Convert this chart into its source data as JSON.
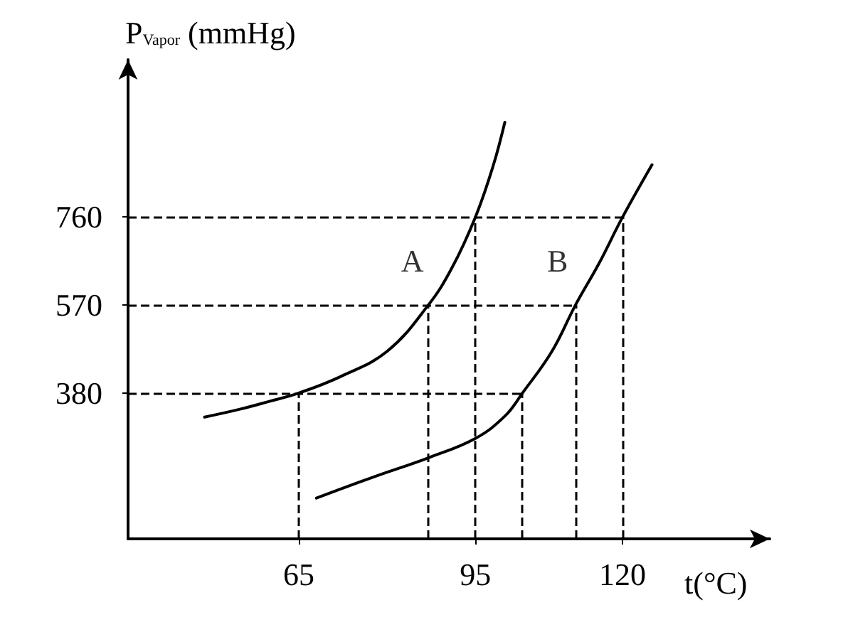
{
  "chart_data": {
    "type": "line",
    "xlabel": "t(°C)",
    "ylabel": "P$_{Vapor}$ (mmHg)",
    "x": [
      49,
      55,
      60,
      65,
      72,
      80,
      87,
      91,
      95,
      98,
      100
    ],
    "series": [
      {
        "color": "#000000",
        "values": [
          328,
          345,
          362,
          380,
          415,
          470,
          570,
          650,
          760,
          870,
          965
        ]
      },
      {
        "color": "#000000",
        "x": [
          68,
          78,
          87,
          95,
          100,
          103,
          108,
          112,
          116,
          120,
          125
        ],
        "values": [
          153,
          200,
          240,
          282,
          330,
          380,
          470,
          570,
          660,
          760,
          873
        ]
      }
    ],
    "xlim": [
      36,
      145
    ],
    "ylim": [
      65,
      1100
    ],
    "xticks": [
      65,
      95,
      120
    ],
    "yticks": [
      380,
      570,
      760
    ],
    "grid": false,
    "marker": "none",
    "line_style": "solid",
    "ref_lines": [
      {
        "axis": "y",
        "value": 380,
        "label": null,
        "color": "#000000",
        "line_style": "dashed"
      },
      {
        "axis": "y",
        "value": 570,
        "label": null,
        "color": "#000000",
        "line_style": "dashed"
      },
      {
        "axis": "y",
        "value": 760,
        "label": null,
        "color": "#000000",
        "line_style": "dashed"
      },
      {
        "axis": "x",
        "value": 65,
        "label": null,
        "color": "#000000",
        "line_style": "dashed"
      },
      {
        "axis": "x",
        "value": 87,
        "label": null,
        "color": "#000000",
        "line_style": "dashed"
      },
      {
        "axis": "x",
        "value": 95,
        "label": null,
        "color": "#000000",
        "line_style": "dashed"
      },
      {
        "axis": "x",
        "value": 103,
        "label": null,
        "color": "#000000",
        "line_style": "dashed"
      },
      {
        "axis": "x",
        "value": 112,
        "label": null,
        "color": "#000000",
        "line_style": "dashed"
      },
      {
        "axis": "x",
        "value": 120,
        "label": null,
        "color": "#000000",
        "line_style": "dashed"
      }
    ],
    "annotations": [
      "A",
      "B"
    ]
  }
}
